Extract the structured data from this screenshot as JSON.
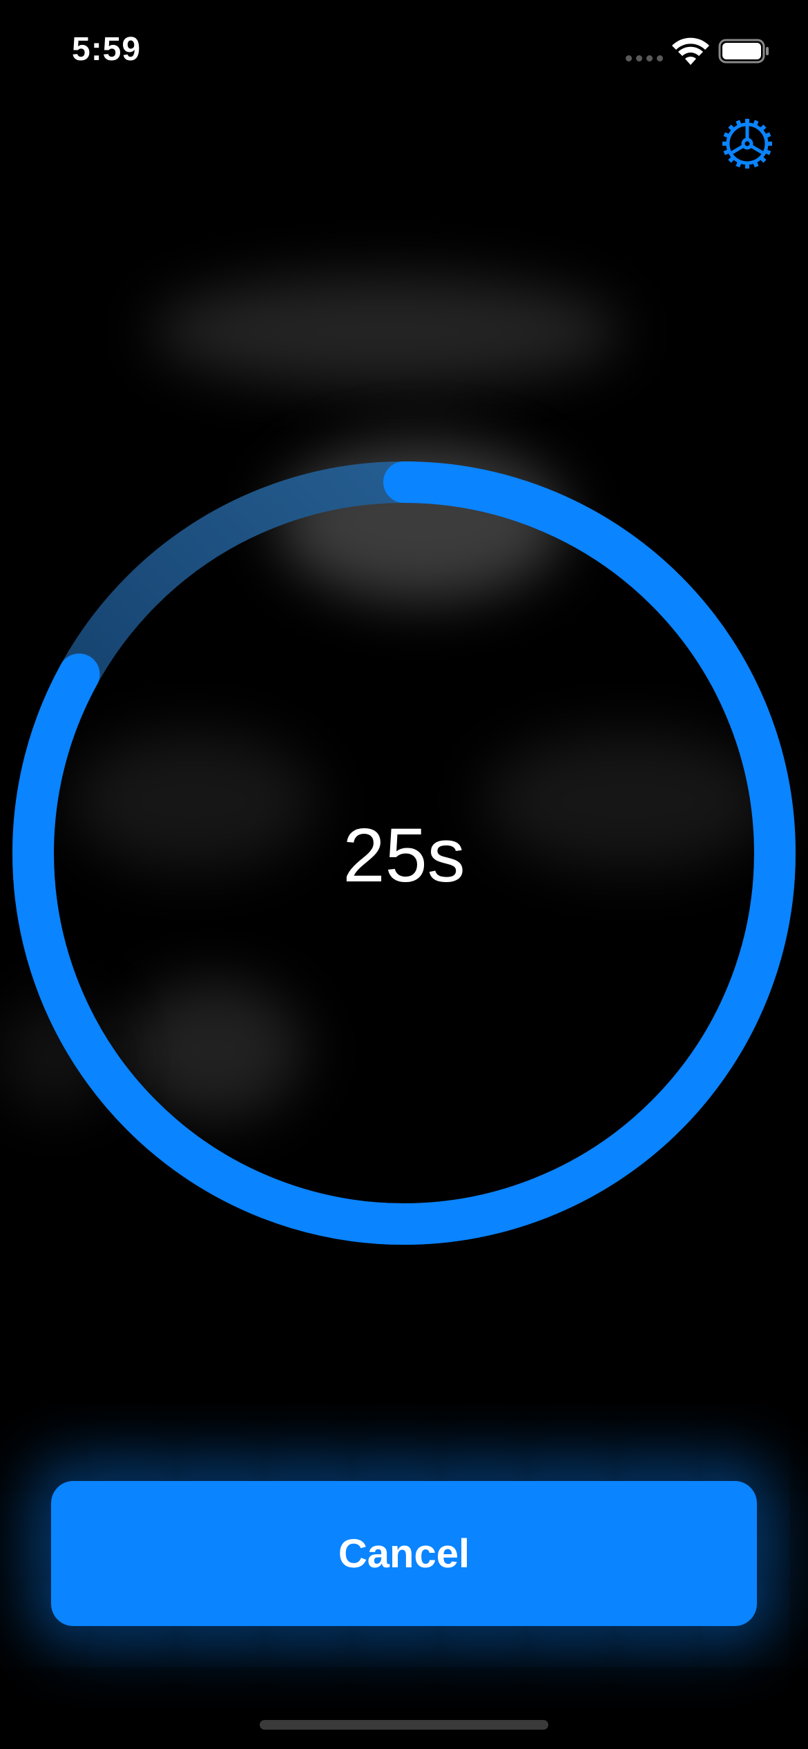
{
  "status_bar": {
    "time": "5:59"
  },
  "icons": {
    "settings": "gear-icon",
    "wifi": "wifi-icon",
    "battery": "battery-icon"
  },
  "timer": {
    "remaining_label": "25s",
    "progress_fraction": 0.83
  },
  "actions": {
    "cancel_label": "Cancel"
  },
  "colors": {
    "accent": "#0a84ff",
    "background": "#000000",
    "track": "#0a3a6e"
  }
}
